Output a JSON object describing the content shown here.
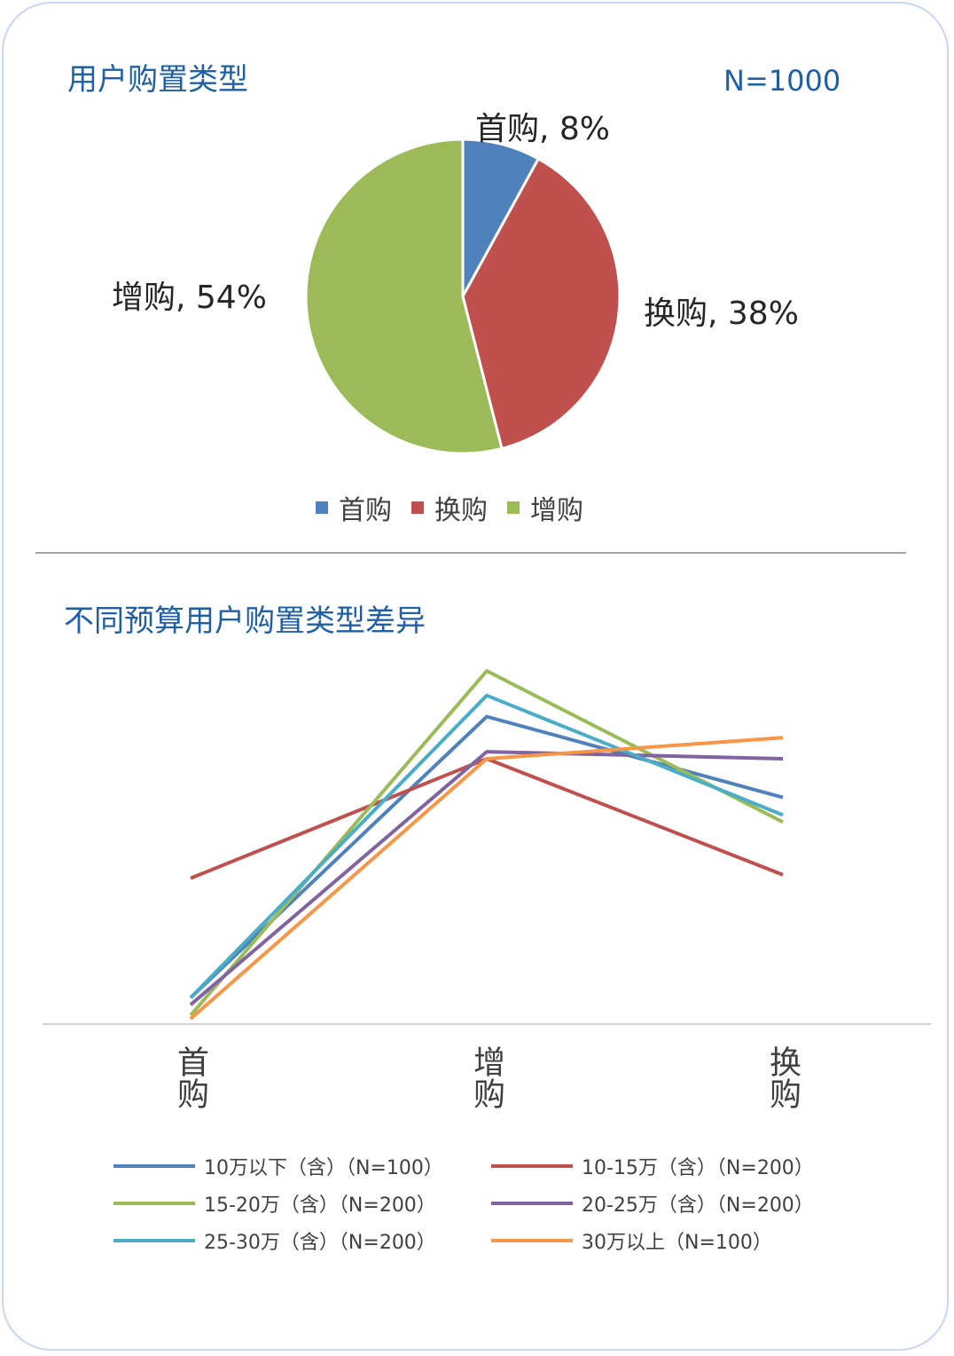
{
  "pie": {
    "title": "用户购置类型",
    "sample_size": "N=1000",
    "legend": [
      "首购",
      "换购",
      "增购"
    ],
    "labels": [
      "首购, 8%",
      "换购, 38%",
      "增购, 54%"
    ]
  },
  "line": {
    "title": "不同预算用户购置类型差异",
    "categories": [
      "首购",
      "增购",
      "换购"
    ],
    "legend": [
      "10万以下（含）（N=100）",
      "10-15万（含）（N=200）",
      "15-20万（含）（N=200）",
      "20-25万（含）（N=200）",
      "25-30万（含）（N=200）",
      "30万以上（N=100）"
    ]
  },
  "chart_data": [
    {
      "type": "pie",
      "title": "用户购置类型",
      "subtitle": "N=1000",
      "categories": [
        "首购",
        "换购",
        "增购"
      ],
      "values": [
        8,
        38,
        54
      ],
      "unit": "%",
      "colors": [
        "#4f81bd",
        "#c0504d",
        "#9bbb59"
      ],
      "legend": "bottom"
    },
    {
      "type": "line",
      "title": "不同预算用户购置类型差异",
      "categories": [
        "首购",
        "增购",
        "换购"
      ],
      "ylim": [
        0,
        100
      ],
      "grid": false,
      "legend": "bottom",
      "series": [
        {
          "name": "10万以下（含）（N=100）",
          "values": [
            7,
            87,
            64
          ],
          "color": "#4f81bd"
        },
        {
          "name": "10-15万（含）（N=200）",
          "values": [
            41,
            75,
            42
          ],
          "color": "#c0504d"
        },
        {
          "name": "15-20万（含）（N=200）",
          "values": [
            2,
            100,
            57
          ],
          "color": "#9bbb59"
        },
        {
          "name": "20-25万（含）（N=200）",
          "values": [
            5,
            77,
            75
          ],
          "color": "#8064a2"
        },
        {
          "name": "25-30万（含）（N=200）",
          "values": [
            7,
            93,
            59
          ],
          "color": "#4bacc6"
        },
        {
          "name": "30万以上（N=100）",
          "values": [
            1,
            75,
            81
          ],
          "color": "#f79646"
        }
      ]
    }
  ]
}
